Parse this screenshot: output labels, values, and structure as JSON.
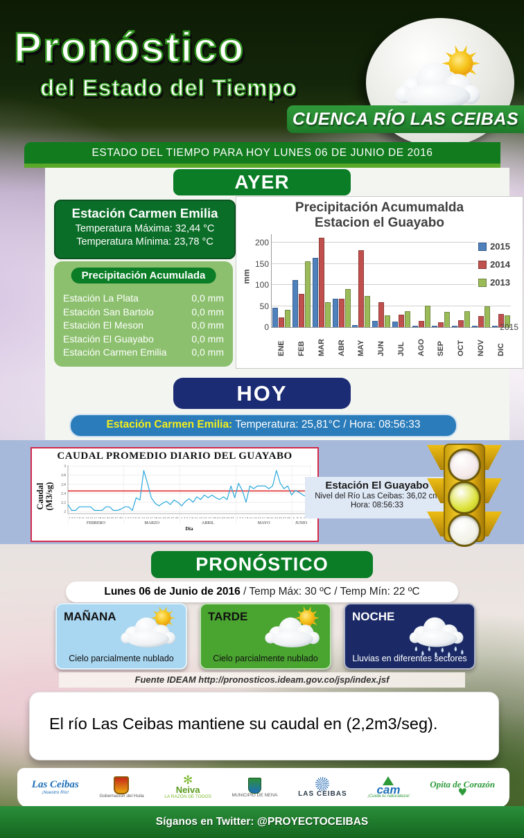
{
  "header": {
    "title": "Pronóstico",
    "subtitle": "del Estado del Tiempo",
    "region_banner": "CUENCA RÍO LAS CEIBAS",
    "status_bar": "ESTADO DEL TIEMPO  PARA HOY  LUNES 06 DE JUNIO  DE 2016"
  },
  "ayer": {
    "section_label": "AYER",
    "station_card": {
      "title": "Estación Carmen Emilia",
      "temp_max": "Temperatura  Máxima:  32,44 °C",
      "temp_min": "Temperatura  Mínima:  23,78 °C"
    },
    "precip": {
      "header": "Precipitación  Acumulada",
      "rows": [
        {
          "station": "Estación La Plata",
          "value": "0,0 mm"
        },
        {
          "station": "Estación San Bartolo",
          "value": "0,0 mm"
        },
        {
          "station": "Estación El Meson",
          "value": "0,0 mm"
        },
        {
          "station": "Estación El Guayabo",
          "value": "0,0 mm"
        },
        {
          "station": "Estación Carmen Emilia",
          "value": "0,0 mm"
        }
      ]
    }
  },
  "hoy": {
    "section_label": "HOY",
    "pill": {
      "station_label": "Estación Carmen Emilia:",
      "info": " Temperatura:  25,81°C  / Hora:  08:56:33"
    }
  },
  "caudal_panel": {
    "station": {
      "title": "Estación  El Guayabo",
      "level": "Nivel del Río  Las Ceibas: 36,02 cm",
      "hour": "Hora: 08:56:33"
    },
    "traffic_light": {
      "lights": [
        {
          "name": "top-light",
          "state": "off",
          "color": "#f6eaea"
        },
        {
          "name": "middle-light",
          "state": "on",
          "color": "#dde23a"
        },
        {
          "name": "bottom-light",
          "state": "off",
          "color": "#f2f2e8"
        }
      ]
    }
  },
  "pronostico": {
    "section_label": "PRONÓSTICO",
    "summary": {
      "date": "Lunes 06 de Junio de 2016",
      "temps": " / Temp Máx:  30 ºC   /   Temp Mín:  22 ºC"
    },
    "cards": [
      {
        "period": "MAÑANA",
        "description": "Cielo parcialmente nublado",
        "icon": "sun-cloud",
        "bg": "#a9d6f0",
        "text_color": "#111111"
      },
      {
        "period": "TARDE",
        "description": "Cielo parcialmente nublado",
        "icon": "sun-cloud",
        "bg": "#4aa430",
        "text_color": "#111111"
      },
      {
        "period": "NOCHE",
        "description": "Lluvias en diferentes sectores",
        "icon": "rain-cloud",
        "bg": "#1b2a66",
        "text_color": "#ffffff"
      }
    ]
  },
  "fuente": {
    "text": "Fuente IDEAM  http://pronosticos.ideam.gov.co/jsp/index.jsf"
  },
  "message": {
    "text": "El río Las Ceibas mantiene su caudal en (2,2m3/seg)."
  },
  "footer": {
    "logos": [
      {
        "name": "cuenca-rio-las-ceibas-logo",
        "text": "Las Ceibas",
        "caption": "¡Nuestro Río!"
      },
      {
        "name": "gobernacion-del-huila-logo",
        "text": "",
        "caption": "Gobernación del Huila"
      },
      {
        "name": "neiva-logo",
        "text": "Neiva",
        "caption": "LA RAZÓN DE TODOS"
      },
      {
        "name": "municipio-de-neiva-logo",
        "text": "",
        "caption": "MUNICIPIO DE NEIVA"
      },
      {
        "name": "las-ceibas-epn-logo",
        "text": "LAS CEIBAS",
        "caption": ""
      },
      {
        "name": "cam-logo",
        "text": "cam",
        "caption": "¡Cuida tu naturaleza!"
      },
      {
        "name": "opita-de-corazon-logo",
        "text": "Opita de Corazón",
        "caption": ""
      }
    ],
    "twitter": "Síganos en Twitter: @PROYECTOCEIBAS"
  },
  "chart_data": [
    {
      "type": "bar",
      "title_line1": "Precipitación Acumumalda",
      "title_line2": "Estacion el Guayabo",
      "categories": [
        "ENE",
        "FEB",
        "MAR",
        "ABR",
        "MAY",
        "JUN",
        "JUL",
        "AGO",
        "SEP",
        "OCT",
        "NOV",
        "DIC"
      ],
      "series": [
        {
          "name": "2015",
          "color": "#4F81BD",
          "values": [
            45,
            110,
            162,
            65,
            3,
            13,
            12,
            0,
            0,
            0,
            0,
            0
          ]
        },
        {
          "name": "2014",
          "color": "#C0504D",
          "values": [
            22,
            78,
            210,
            65,
            180,
            57,
            28,
            13,
            10,
            15,
            25,
            30
          ]
        },
        {
          "name": "2013",
          "color": "#9BBB59",
          "values": [
            40,
            155,
            57,
            88,
            73,
            26,
            36,
            50,
            34,
            36,
            47,
            27
          ]
        }
      ],
      "ylabel": "mm",
      "yticks": [
        0,
        50,
        100,
        150,
        200
      ],
      "ylim": [
        0,
        220
      ],
      "depth_axis_label": "2015",
      "legend_position": "right"
    },
    {
      "type": "line",
      "title": "CAUDAL PROMEDIO DIARIO DEL GUAYABO",
      "ylabel_line1": "Caudal",
      "ylabel_line2": "(M3/sg)",
      "xlabel": "Día",
      "yticks": [
        2,
        2.2,
        2.4,
        2.6,
        2.8,
        3
      ],
      "ylim": [
        1.95,
        3.02
      ],
      "reference_line": 2.45,
      "reference_color": "#e03030",
      "line_color": "#2aa8dc",
      "months": [
        {
          "name": "FEBRERO",
          "day_ticks": "1 3 5 7 9 11 13 15 17 19 21 23 25 27 29",
          "points": 15
        },
        {
          "name": "MARZO",
          "day_ticks": "1 3 5 7 9 11 13 15 17 19 21 23 25 27 29",
          "points": 15
        },
        {
          "name": "ABRIL",
          "day_ticks": "1 3 5 7 9 11 13 15 17 19 21 23 25 27",
          "points": 15
        },
        {
          "name": "MAYO",
          "day_ticks": "1 3 5 7 9 11 13 15 17 19 21 23 25 27 29",
          "points": 15
        },
        {
          "name": "JUNIO",
          "day_ticks": "1 3 5 7 9",
          "points": 5
        }
      ],
      "values": [
        2.15,
        2.02,
        2.02,
        2.1,
        2.1,
        2.1,
        2.1,
        2.02,
        2.02,
        2.02,
        2.1,
        2.1,
        2.02,
        2.02,
        2.05,
        2.1,
        2.1,
        2.02,
        2.3,
        2.25,
        2.9,
        2.62,
        2.3,
        2.18,
        2.12,
        2.18,
        2.22,
        2.15,
        2.25,
        2.2,
        2.12,
        2.22,
        2.28,
        2.2,
        2.32,
        2.26,
        2.36,
        2.3,
        2.36,
        2.3,
        2.26,
        2.32,
        2.26,
        2.56,
        2.3,
        2.62,
        2.46,
        2.2,
        2.56,
        2.5,
        2.56,
        2.56,
        2.56,
        2.5,
        2.56,
        2.9,
        2.62,
        2.5,
        2.56,
        2.36,
        2.46,
        2.42,
        2.36,
        2.32,
        2.22
      ]
    }
  ]
}
